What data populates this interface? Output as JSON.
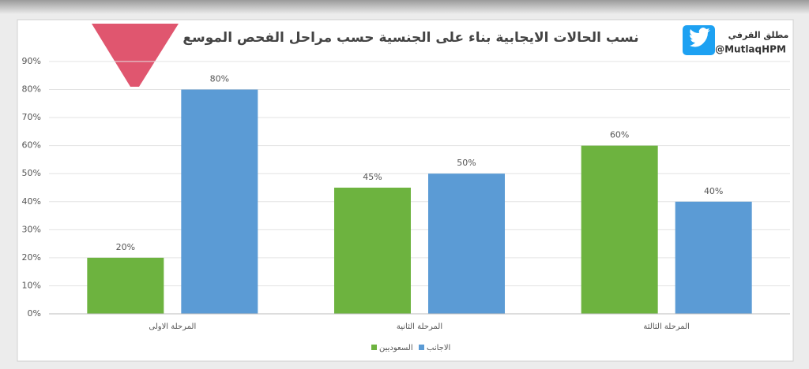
{
  "chart_data": {
    "type": "bar",
    "title": "نسب الحالات الايجابية بناء على الجنسية حسب مراحل الفحص الموسع",
    "account_name": "مطلق القرفي",
    "account_handle": "@MutlaqHPM",
    "categories": [
      "المرحلة الاولى",
      "المرحلة الثانية",
      "المرحلة الثالثة"
    ],
    "series": [
      {
        "name": "السعوديين",
        "color": "#6db33f",
        "values": [
          20,
          45,
          60
        ],
        "value_labels": [
          "20%",
          "45%",
          "60%"
        ]
      },
      {
        "name": "الاجانب",
        "color": "#5b9bd5",
        "values": [
          80,
          50,
          40
        ],
        "value_labels": [
          "80%",
          "50%",
          "40%"
        ]
      }
    ],
    "ylim": [
      0,
      90
    ],
    "yticks": [
      {
        "value": 0,
        "label": "0%"
      },
      {
        "value": 10,
        "label": "10%"
      },
      {
        "value": 20,
        "label": "20%"
      },
      {
        "value": 30,
        "label": "30%"
      },
      {
        "value": 40,
        "label": "40%"
      },
      {
        "value": 50,
        "label": "50%"
      },
      {
        "value": 60,
        "label": "60%"
      },
      {
        "value": 70,
        "label": "70%"
      },
      {
        "value": 80,
        "label": "80%"
      },
      {
        "value": 90,
        "label": "90%"
      }
    ],
    "grid": true
  }
}
